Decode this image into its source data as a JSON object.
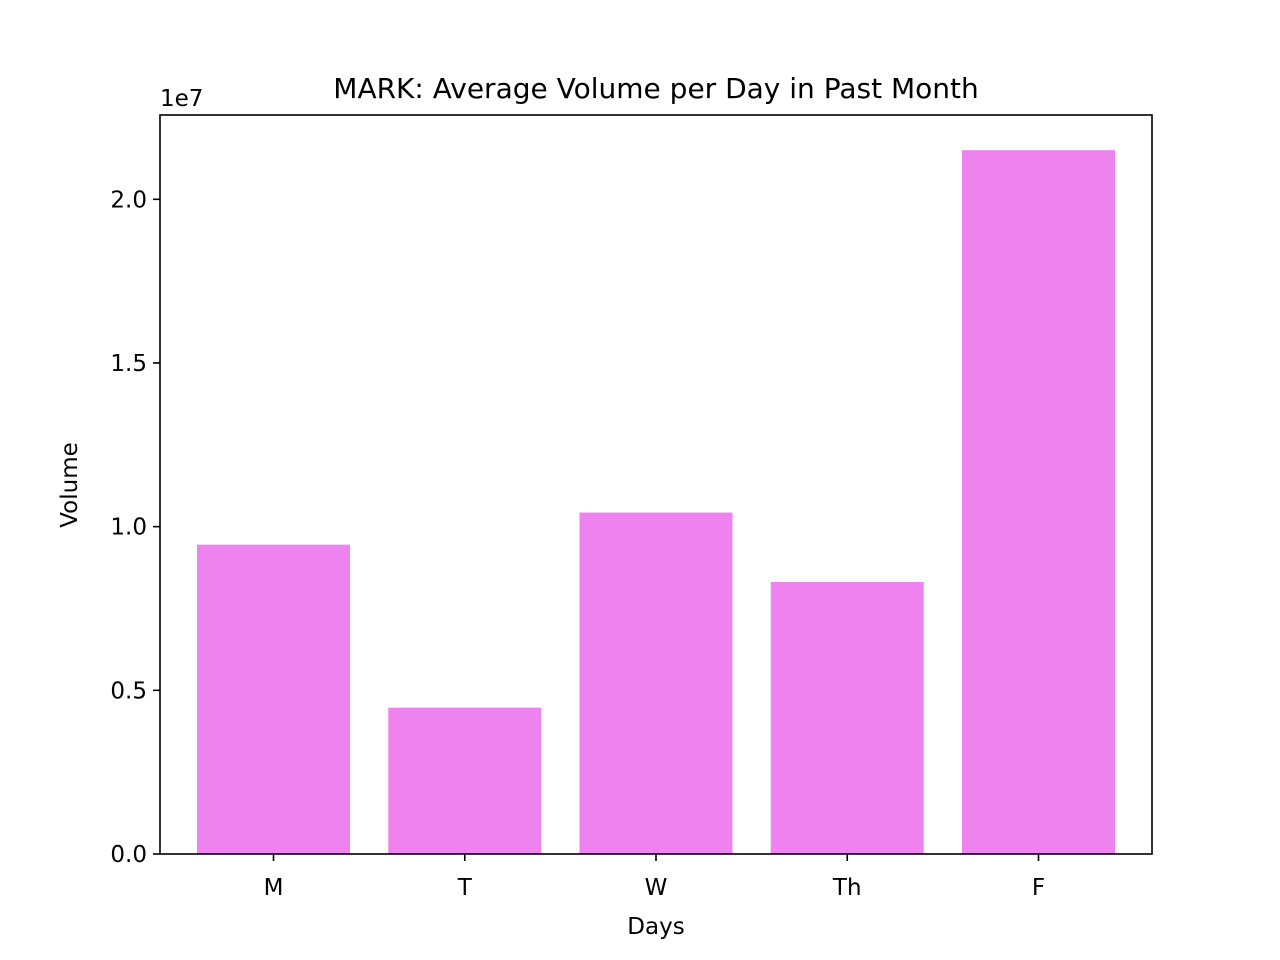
{
  "chart_data": {
    "type": "bar",
    "title": "MARK: Average Volume per Day in Past Month",
    "xlabel": "Days",
    "ylabel": "Volume",
    "y_offset_label": "1e7",
    "categories": [
      "M",
      "T",
      "W",
      "Th",
      "F"
    ],
    "values": [
      9450000,
      4470000,
      10430000,
      8310000,
      21500000
    ],
    "ylim": [
      0,
      22575000
    ],
    "yticks": [
      0,
      5000000,
      10000000,
      15000000,
      20000000
    ],
    "ytick_labels": [
      "0.0",
      "0.5",
      "1.0",
      "1.5",
      "2.0"
    ],
    "bar_color": "#ee82ee",
    "grid": false,
    "legend": "none"
  }
}
